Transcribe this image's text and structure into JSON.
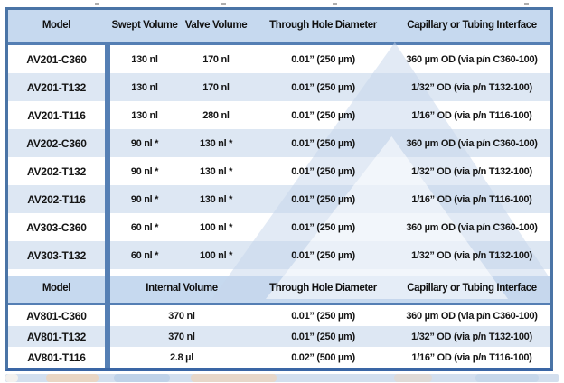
{
  "colors": {
    "header_bg": "#c6d9ef",
    "row_alt_bg": "#dde7f3",
    "outer_border": "#4a74a6",
    "accent_bar": "#557fb4",
    "watermark": "#c5d6ec",
    "text": "#151515"
  },
  "section1": {
    "columns": {
      "model": "Model",
      "swept": "Swept Volume",
      "valve": "Valve Volume",
      "hole": "Through Hole Diameter",
      "interface": "Capillary or Tubing Interface"
    },
    "rows": [
      {
        "model": "AV201-C360",
        "swept": "130 nl",
        "valve": "170 nl",
        "hole": "0.01” (250 µm)",
        "interface": "360 µm OD (via p/n C360-100)"
      },
      {
        "model": "AV201-T132",
        "swept": "130 nl",
        "valve": "170 nl",
        "hole": "0.01” (250 µm)",
        "interface": "1/32” OD (via p/n T132-100)"
      },
      {
        "model": "AV201-T116",
        "swept": "130 nl",
        "valve": "280 nl",
        "hole": "0.01” (250 µm)",
        "interface": "1/16” OD (via p/n T116-100)"
      },
      {
        "model": "AV202-C360",
        "swept": "90 nl *",
        "valve": "130 nl *",
        "hole": "0.01” (250 µm)",
        "interface": "360 µm OD (via p/n C360-100)"
      },
      {
        "model": "AV202-T132",
        "swept": "90 nl *",
        "valve": "130 nl *",
        "hole": "0.01” (250 µm)",
        "interface": "1/32” OD (via p/n T132-100)"
      },
      {
        "model": "AV202-T116",
        "swept": "90 nl *",
        "valve": "130 nl *",
        "hole": "0.01” (250 µm)",
        "interface": "1/16” OD (via p/n T116-100)"
      },
      {
        "model": "AV303-C360",
        "swept": "60 nl *",
        "valve": "100 nl *",
        "hole": "0.01” (250 µm)",
        "interface": "360 µm OD (via p/n C360-100)"
      },
      {
        "model": "AV303-T132",
        "swept": "60 nl *",
        "valve": "100 nl *",
        "hole": "0.01” (250 µm)",
        "interface": "1/32” OD (via p/n T132-100)"
      }
    ]
  },
  "section2": {
    "columns": {
      "model": "Model",
      "internal": "Internal Volume",
      "hole": "Through Hole Diameter",
      "interface": "Capillary or Tubing Interface"
    },
    "rows": [
      {
        "model": "AV801-C360",
        "internal": "370 nl",
        "hole": "0.01” (250 µm)",
        "interface": "360 µm OD (via p/n C360-100)"
      },
      {
        "model": "AV801-T132",
        "internal": "370 nl",
        "hole": "0.01” (250 µm)",
        "interface": "1/32” OD (via p/n T132-100)"
      },
      {
        "model": "AV801-T116",
        "internal": "2.8 µl",
        "hole": "0.02” (500 µm)",
        "interface": "1/16” OD (via p/n T116-100)"
      }
    ]
  }
}
